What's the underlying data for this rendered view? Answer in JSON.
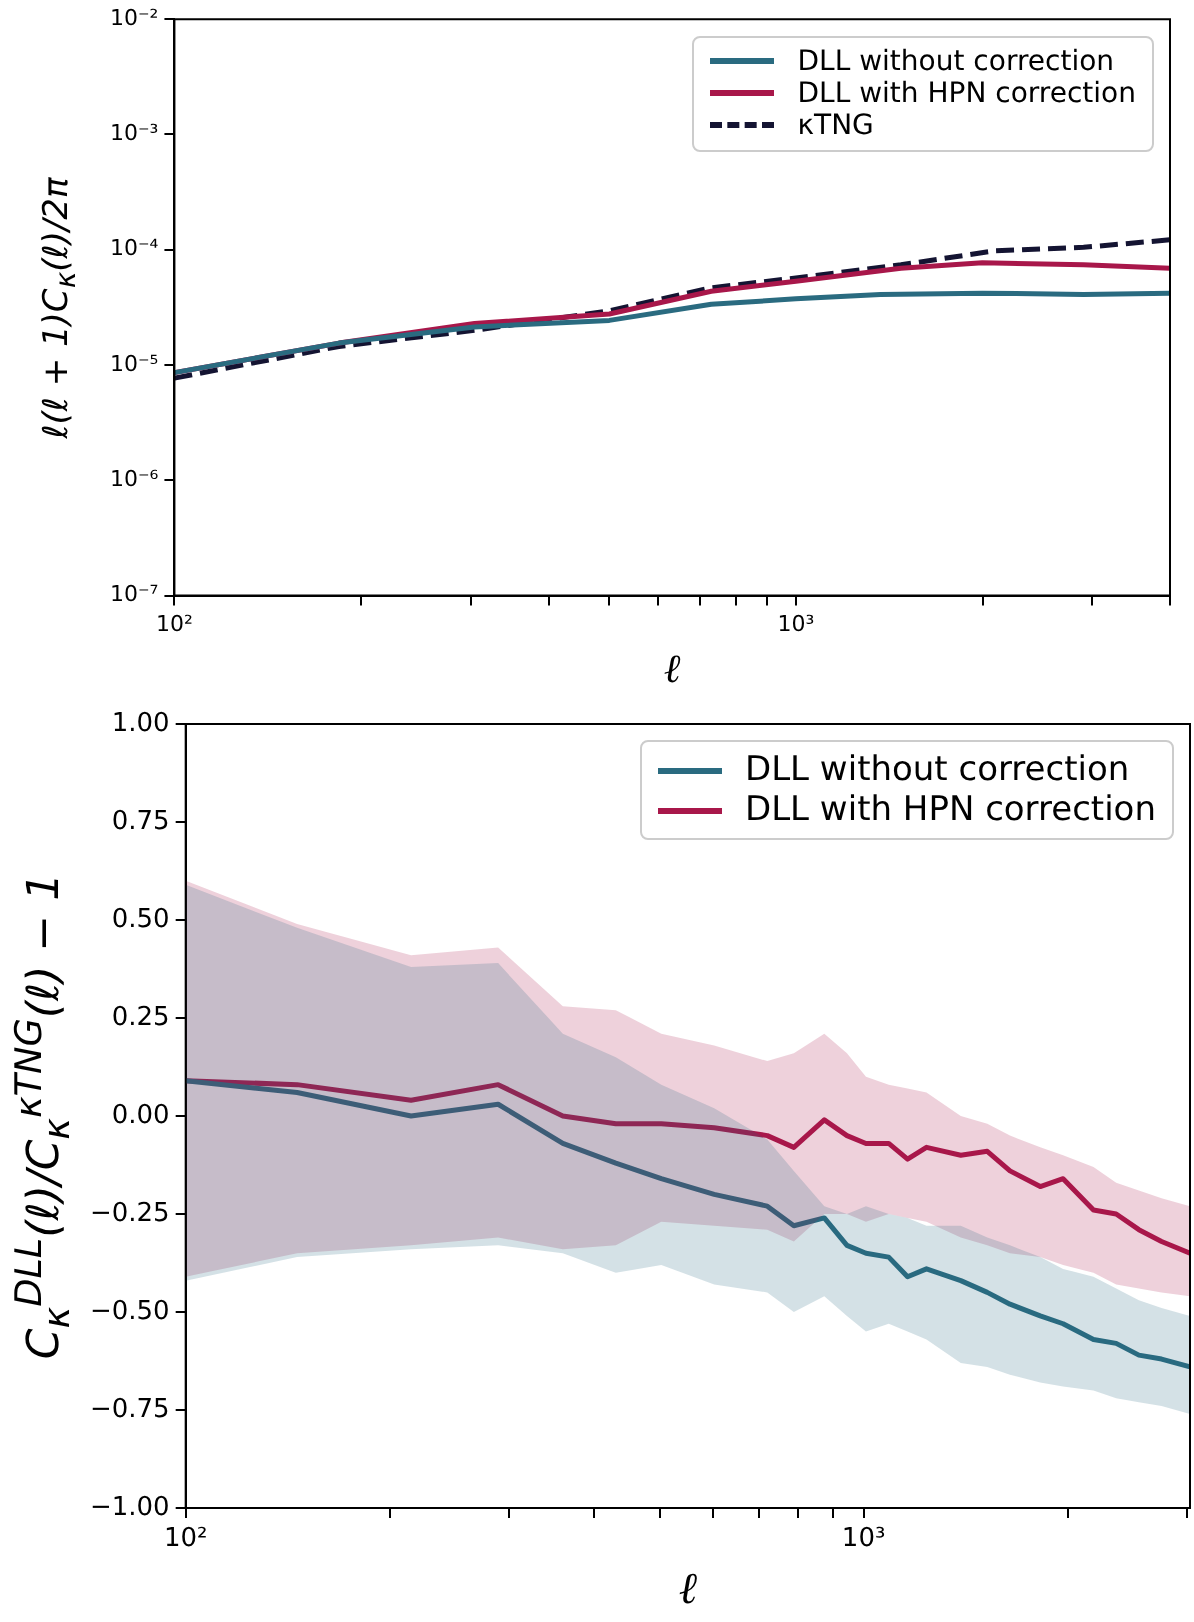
{
  "chart_data": [
    {
      "type": "line",
      "xlabel": "ℓ",
      "ylabel": "ℓ(ℓ + 1)C$_{κ}$(ℓ)/2π",
      "log": "xy",
      "legend": "top right",
      "xlim": [
        100,
        4000
      ],
      "ylim": [
        1e-07,
        0.01
      ],
      "xticks": [
        {
          "value": 100,
          "label": "10²"
        },
        {
          "value": 200,
          "label": null
        },
        {
          "value": 300,
          "label": null
        },
        {
          "value": 400,
          "label": null
        },
        {
          "value": 500,
          "label": null
        },
        {
          "value": 600,
          "label": null
        },
        {
          "value": 700,
          "label": null
        },
        {
          "value": 800,
          "label": null
        },
        {
          "value": 900,
          "label": null
        },
        {
          "value": 1000,
          "label": "10³"
        },
        {
          "value": 2000,
          "label": null
        },
        {
          "value": 3000,
          "label": null
        },
        {
          "value": 4000,
          "label": null
        }
      ],
      "yticks": [
        {
          "value": 1e-07,
          "label": "10⁻⁷"
        },
        {
          "value": 1e-06,
          "label": "10⁻⁶"
        },
        {
          "value": 1e-05,
          "label": "10⁻⁵"
        },
        {
          "value": 0.0001,
          "label": "10⁻⁴"
        },
        {
          "value": 0.001,
          "label": "10⁻³"
        },
        {
          "value": 0.01,
          "label": "10⁻²"
        }
      ],
      "series": [
        {
          "name": "DLL without correction",
          "color": "#2a6b80",
          "x": [
            100,
            184,
            304,
            501,
            731,
            1000,
            1368,
            1995,
            2904,
            4000
          ],
          "values": [
            8.6e-06,
            1.55e-05,
            2.14e-05,
            2.44e-05,
            3.37e-05,
            3.75e-05,
            4.1e-05,
            4.2e-05,
            4.1e-05,
            4.2e-05
          ]
        },
        {
          "name": "DLL with HPN correction",
          "color": "#a8174a",
          "x": [
            100,
            184,
            304,
            501,
            731,
            1000,
            1476,
            1995,
            2904,
            4000
          ],
          "values": [
            8.6e-06,
            1.55e-05,
            2.29e-05,
            2.77e-05,
            4.37e-05,
            5.32e-05,
            6.9e-05,
            7.7e-05,
            7.4e-05,
            6.9e-05
          ]
        },
        {
          "name": "κTNG",
          "color": "#141432",
          "line_style": "dashed",
          "x": [
            100,
            184,
            304,
            501,
            731,
            1000,
            1476,
            2094,
            2904,
            4000
          ],
          "values": [
            7.7e-06,
            1.45e-05,
            2e-05,
            2.96e-05,
            4.68e-05,
            5.69e-05,
            7.4e-05,
            9.8e-05,
            0.000105,
            0.000122
          ]
        }
      ]
    },
    {
      "type": "line",
      "xlabel": "ℓ",
      "ylabel": "C$_{κ}$$^{DLL}$(ℓ)/C$_{κ}$$^{κTNG}$(ℓ) − 1",
      "log": "x",
      "legend": "top right",
      "xlim": [
        100,
        3030
      ],
      "ylim": [
        -1,
        1
      ],
      "xticks": [
        {
          "value": 100,
          "label": "10²"
        },
        {
          "value": 200,
          "label": null
        },
        {
          "value": 300,
          "label": null
        },
        {
          "value": 400,
          "label": null
        },
        {
          "value": 500,
          "label": null
        },
        {
          "value": 600,
          "label": null
        },
        {
          "value": 700,
          "label": null
        },
        {
          "value": 800,
          "label": null
        },
        {
          "value": 900,
          "label": null
        },
        {
          "value": 1000,
          "label": "10³"
        },
        {
          "value": 2000,
          "label": null
        },
        {
          "value": 3000,
          "label": null
        }
      ],
      "yticks": [
        {
          "value": -1,
          "label": "−1.00"
        },
        {
          "value": -0.75,
          "label": "−0.75"
        },
        {
          "value": -0.5,
          "label": "−0.50"
        },
        {
          "value": -0.25,
          "label": "−0.25"
        },
        {
          "value": 0,
          "label": "0.00"
        },
        {
          "value": 0.25,
          "label": "0.25"
        },
        {
          "value": 0.5,
          "label": "0.50"
        },
        {
          "value": 0.75,
          "label": "0.75"
        },
        {
          "value": 1,
          "label": "1.00"
        }
      ],
      "series": [
        {
          "name": "DLL without correction",
          "color": "#2a6b80",
          "x": [
            100,
            146,
            215,
            289,
            360,
            431,
            503,
            602,
            721,
            789,
            875,
            945,
            1008,
            1089,
            1161,
            1238,
            1391,
            1522,
            1644,
            1822,
            1969,
            2183,
            2358,
            2547,
            2751,
            3030
          ],
          "values": [
            0.09,
            0.06,
            0.0,
            0.03,
            -0.07,
            -0.12,
            -0.16,
            -0.2,
            -0.23,
            -0.28,
            -0.26,
            -0.33,
            -0.35,
            -0.36,
            -0.41,
            -0.39,
            -0.42,
            -0.45,
            -0.48,
            -0.51,
            -0.53,
            -0.57,
            -0.58,
            -0.61,
            -0.62,
            -0.64
          ],
          "upper": [
            0.59,
            0.48,
            0.38,
            0.39,
            0.21,
            0.15,
            0.08,
            0.02,
            -0.06,
            -0.14,
            -0.23,
            -0.25,
            -0.23,
            -0.25,
            -0.26,
            -0.28,
            -0.28,
            -0.31,
            -0.33,
            -0.36,
            -0.39,
            -0.41,
            -0.44,
            -0.47,
            -0.49,
            -0.51
          ],
          "lower": [
            -0.42,
            -0.36,
            -0.34,
            -0.33,
            -0.35,
            -0.4,
            -0.38,
            -0.43,
            -0.45,
            -0.5,
            -0.46,
            -0.51,
            -0.55,
            -0.53,
            -0.55,
            -0.57,
            -0.63,
            -0.64,
            -0.66,
            -0.68,
            -0.69,
            -0.7,
            -0.72,
            -0.73,
            -0.74,
            -0.76
          ]
        },
        {
          "name": "DLL with HPN correction",
          "color": "#a8174a",
          "x": [
            100,
            146,
            215,
            289,
            360,
            431,
            503,
            602,
            721,
            789,
            875,
            945,
            1008,
            1089,
            1161,
            1238,
            1391,
            1522,
            1644,
            1822,
            1969,
            2183,
            2358,
            2547,
            2751,
            3030
          ],
          "values": [
            0.09,
            0.08,
            0.04,
            0.08,
            0.0,
            -0.02,
            -0.02,
            -0.03,
            -0.05,
            -0.08,
            -0.01,
            -0.05,
            -0.07,
            -0.07,
            -0.11,
            -0.08,
            -0.1,
            -0.09,
            -0.14,
            -0.18,
            -0.16,
            -0.24,
            -0.25,
            -0.29,
            -0.32,
            -0.35
          ],
          "upper": [
            0.6,
            0.49,
            0.41,
            0.43,
            0.28,
            0.27,
            0.21,
            0.18,
            0.14,
            0.16,
            0.21,
            0.16,
            0.1,
            0.08,
            0.07,
            0.06,
            0.0,
            -0.02,
            -0.05,
            -0.08,
            -0.1,
            -0.13,
            -0.17,
            -0.19,
            -0.21,
            -0.23
          ],
          "lower": [
            -0.41,
            -0.35,
            -0.33,
            -0.31,
            -0.34,
            -0.33,
            -0.27,
            -0.28,
            -0.29,
            -0.32,
            -0.25,
            -0.25,
            -0.27,
            -0.25,
            -0.26,
            -0.27,
            -0.31,
            -0.33,
            -0.35,
            -0.36,
            -0.38,
            -0.4,
            -0.43,
            -0.44,
            -0.45,
            -0.46
          ]
        }
      ]
    }
  ]
}
